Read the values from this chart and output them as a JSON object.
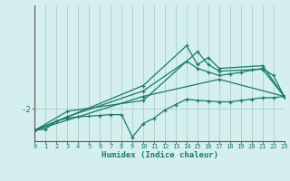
{
  "background_color": "#d4efed",
  "grid_color": "#aacfcc",
  "line_color": "#1a7a6e",
  "xlabel": "Humidex (Indice chaleur)",
  "xlim": [
    0,
    23
  ],
  "ylim": [
    -3.2,
    1.8
  ],
  "xticks": [
    0,
    1,
    2,
    3,
    4,
    5,
    6,
    7,
    8,
    9,
    10,
    11,
    12,
    13,
    14,
    15,
    16,
    17,
    18,
    19,
    20,
    21,
    22,
    23
  ],
  "yticks": [
    -2
  ],
  "ytick_labels": [
    "-2"
  ],
  "series": [
    {
      "x": [
        0,
        1,
        2,
        3,
        4,
        5,
        6,
        7,
        8,
        9,
        10,
        11,
        12,
        13,
        14,
        15,
        16,
        17,
        18,
        19,
        20,
        21,
        22,
        23
      ],
      "y": [
        -2.8,
        -2.75,
        -2.45,
        -2.35,
        -2.3,
        -2.28,
        -2.25,
        -2.22,
        -2.22,
        -3.05,
        -2.55,
        -2.35,
        -2.05,
        -1.85,
        -1.65,
        -1.7,
        -1.72,
        -1.75,
        -1.75,
        -1.7,
        -1.65,
        -1.6,
        -1.6,
        -1.55
      ]
    },
    {
      "x": [
        0,
        3,
        10,
        15,
        16,
        17,
        21,
        23
      ],
      "y": [
        -2.8,
        -2.1,
        -1.7,
        0.1,
        -0.38,
        -0.62,
        -0.55,
        -1.55
      ]
    },
    {
      "x": [
        0,
        3,
        10,
        14,
        15,
        16,
        17,
        18,
        19,
        20,
        21,
        22,
        23
      ],
      "y": [
        -2.8,
        -2.3,
        -1.35,
        -0.25,
        -0.52,
        -0.65,
        -0.78,
        -0.72,
        -0.67,
        -0.58,
        -0.52,
        -0.78,
        -1.55
      ]
    },
    {
      "x": [
        0,
        10,
        14,
        15,
        16,
        17,
        21,
        23
      ],
      "y": [
        -2.8,
        -1.15,
        0.32,
        -0.38,
        -0.12,
        -0.52,
        -0.42,
        -1.55
      ]
    },
    {
      "x": [
        0,
        10,
        17,
        23
      ],
      "y": [
        -2.8,
        -1.55,
        -0.92,
        -1.55
      ]
    }
  ]
}
